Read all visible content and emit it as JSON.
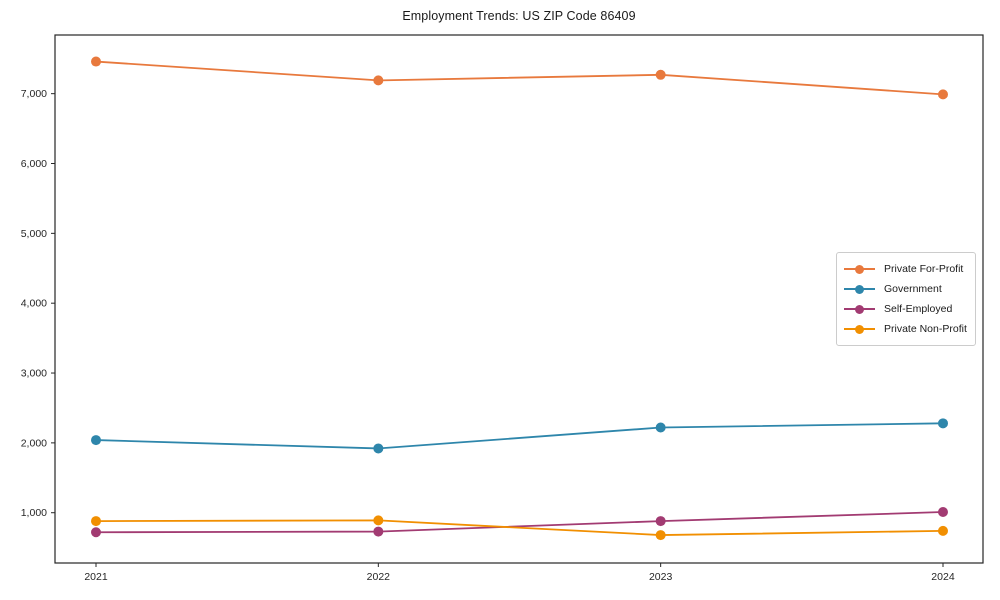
{
  "chart_data": {
    "type": "line",
    "title": "Employment Trends: US ZIP Code 86409",
    "x": [
      2021,
      2022,
      2023,
      2024
    ],
    "x_tick_labels": [
      "2021",
      "2022",
      "2023",
      "2024"
    ],
    "y_ticks": [
      1000,
      2000,
      3000,
      4000,
      5000,
      6000,
      7000
    ],
    "y_tick_labels": [
      "1,000",
      "2,000",
      "3,000",
      "4,000",
      "5,000",
      "6,000",
      "7,000"
    ],
    "ylim": [
      280,
      7840
    ],
    "grid": false,
    "legend_position": "center right",
    "series": [
      {
        "name": "Private For-Profit",
        "color": "#E8793D",
        "values": [
          7460,
          7190,
          7270,
          6990
        ]
      },
      {
        "name": "Government",
        "color": "#2E86AB",
        "values": [
          2040,
          1920,
          2220,
          2280
        ]
      },
      {
        "name": "Self-Employed",
        "color": "#A23B72",
        "values": [
          720,
          730,
          880,
          1010
        ]
      },
      {
        "name": "Private Non-Profit",
        "color": "#F18F01",
        "values": [
          880,
          890,
          680,
          740
        ]
      }
    ],
    "axis_color": "#262626",
    "tick_label_color": "#262626"
  }
}
